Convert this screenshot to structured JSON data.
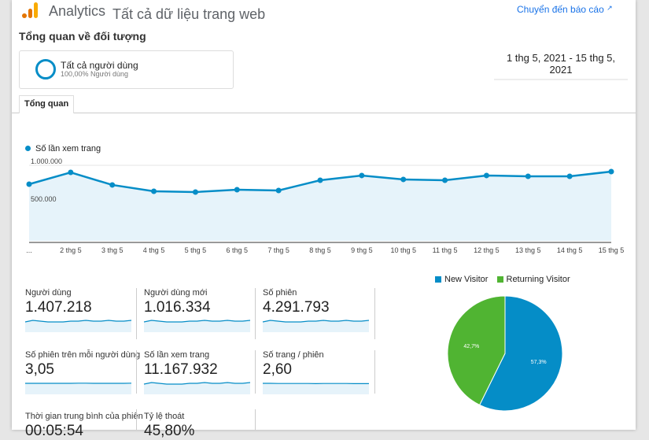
{
  "header": {
    "brand": "Analytics",
    "property": "Tất cả dữ liệu trang web",
    "goto_report": "Chuyển đến báo cáo"
  },
  "title": "Tổng quan về đối tượng",
  "segment": {
    "name": "Tất cả người dùng",
    "sub": "100,00% Người dùng"
  },
  "date_range": "1 thg 5, 2021 - 15 thg 5, 2021",
  "tabs": [
    {
      "label": "Tổng quan"
    }
  ],
  "colors": {
    "blue": "#058dc7",
    "green": "#50b432",
    "link": "#1a73e8"
  },
  "chart_data": [
    {
      "type": "area",
      "title": "",
      "legend": [
        "Số lần xem trang"
      ],
      "ylabel": "",
      "xlabel": "",
      "ylim": [
        0,
        1000000
      ],
      "y_ticks": [
        "1.000.000",
        "500.000"
      ],
      "categories": [
        "...",
        "2 thg 5",
        "3 thg 5",
        "4 thg 5",
        "5 thg 5",
        "6 thg 5",
        "7 thg 5",
        "8 thg 5",
        "9 thg 5",
        "10 thg 5",
        "11 thg 5",
        "12 thg 5",
        "13 thg 5",
        "14 thg 5",
        "15 thg 5"
      ],
      "series": [
        {
          "name": "Số lần xem trang",
          "values": [
            750000,
            906000,
            740000,
            656000,
            646000,
            677000,
            667000,
            802000,
            865000,
            813000,
            802000,
            865000,
            854000,
            854000,
            917000
          ]
        }
      ]
    },
    {
      "type": "pie",
      "legend": [
        "New Visitor",
        "Returning Visitor"
      ],
      "values": [
        57.3,
        42.7
      ],
      "labels": [
        "57,3%",
        "42,7%"
      ]
    }
  ],
  "metrics": [
    {
      "label": "Người dùng",
      "value": "1.407.218",
      "spark": [
        5,
        3,
        4,
        5,
        5,
        5,
        4,
        4,
        3,
        4,
        4,
        3,
        4,
        4,
        3
      ]
    },
    {
      "label": "Người dùng mới",
      "value": "1.016.334",
      "spark": [
        5,
        3,
        4,
        5,
        5,
        5,
        4,
        4,
        3,
        4,
        4,
        3,
        4,
        4,
        3
      ]
    },
    {
      "label": "Số phiên",
      "value": "4.291.793",
      "spark": [
        5,
        3,
        4,
        5,
        5,
        5,
        4,
        4,
        3,
        4,
        4,
        3,
        4,
        4,
        3
      ]
    },
    {
      "label": "Số phiên trên mỗi người dùng",
      "value": "3,05",
      "spark": [
        4,
        4,
        4,
        4,
        4,
        4,
        4,
        3.8,
        3.8,
        4,
        4,
        4,
        4,
        4,
        3.8
      ]
    },
    {
      "label": "Số lần xem trang",
      "value": "11.167.932",
      "spark": [
        5,
        3,
        4,
        5,
        5,
        5,
        4,
        4,
        3,
        4,
        4,
        3,
        4,
        4,
        3
      ]
    },
    {
      "label": "Số trang / phiên",
      "value": "2,60",
      "spark": [
        4,
        4,
        4.2,
        4.2,
        4.2,
        4.2,
        4.2,
        4.4,
        4.2,
        4.2,
        4.2,
        4.2,
        4.4,
        4.4,
        4.4
      ]
    },
    {
      "label": "Thời gian trung bình của phiên",
      "value": "00:05:54"
    },
    {
      "label": "Tỷ lệ thoát",
      "value": "45,80%"
    }
  ]
}
